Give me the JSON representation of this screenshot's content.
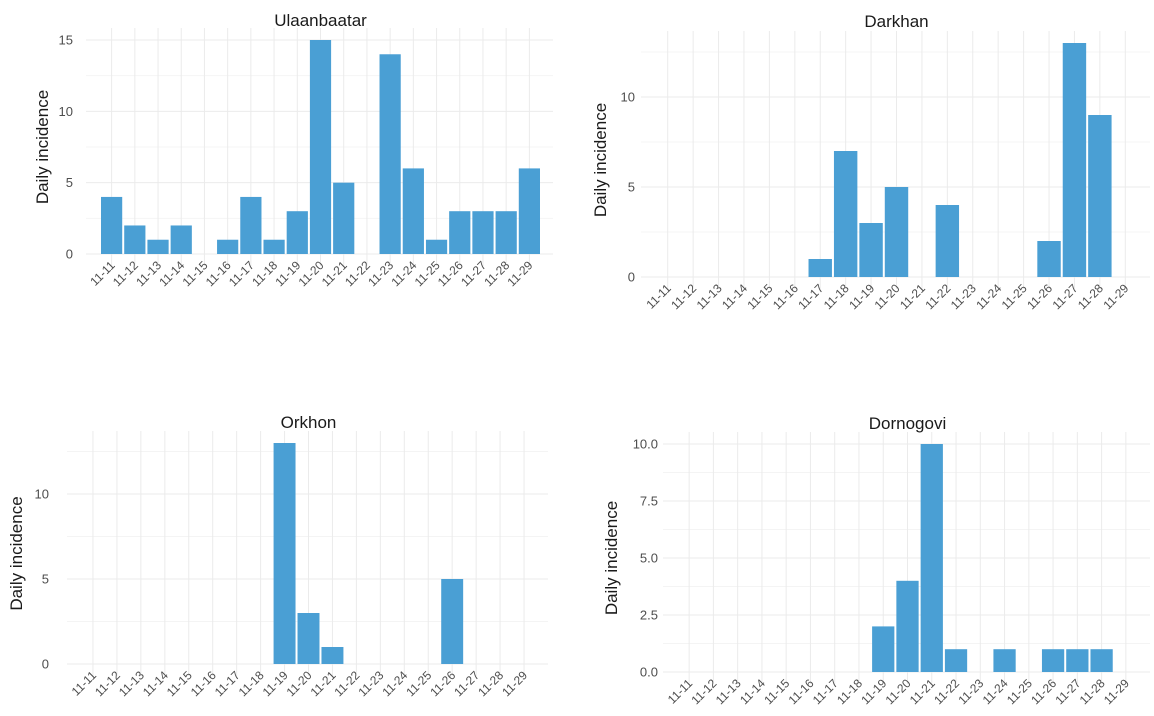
{
  "chart_data": [
    {
      "type": "bar",
      "title": "Ulaanbaatar",
      "ylabel": "Daily incidence",
      "categories": [
        "11-11",
        "11-12",
        "11-13",
        "11-14",
        "11-15",
        "11-16",
        "11-17",
        "11-18",
        "11-19",
        "11-20",
        "11-21",
        "11-22",
        "11-23",
        "11-24",
        "11-25",
        "11-26",
        "11-27",
        "11-28",
        "11-29"
      ],
      "values": [
        4,
        2,
        1,
        2,
        0,
        1,
        4,
        1,
        3,
        15,
        5,
        0,
        14,
        6,
        1,
        3,
        3,
        3,
        6
      ],
      "yticks": [
        0,
        5,
        10,
        15
      ],
      "ytick_labels": [
        "0",
        "5",
        "10",
        "15"
      ],
      "ylim": [
        0,
        15
      ],
      "bar_color": "#4a9fd4",
      "grid": true
    },
    {
      "type": "bar",
      "title": "Darkhan",
      "ylabel": "Daily incidence",
      "categories": [
        "11-11",
        "11-12",
        "11-13",
        "11-14",
        "11-15",
        "11-16",
        "11-17",
        "11-18",
        "11-19",
        "11-20",
        "11-21",
        "11-22",
        "11-23",
        "11-24",
        "11-25",
        "11-26",
        "11-27",
        "11-28",
        "11-29"
      ],
      "values": [
        0,
        0,
        0,
        0,
        0,
        0,
        1,
        7,
        3,
        5,
        0,
        4,
        0,
        0,
        0,
        2,
        13,
        9,
        0
      ],
      "yticks": [
        0,
        5,
        10
      ],
      "ytick_labels": [
        "0",
        "5",
        "10"
      ],
      "ylim": [
        0,
        13
      ],
      "bar_color": "#4a9fd4",
      "grid": true
    },
    {
      "type": "bar",
      "title": "Orkhon",
      "ylabel": "Daily incidence",
      "categories": [
        "11-11",
        "11-12",
        "11-13",
        "11-14",
        "11-15",
        "11-16",
        "11-17",
        "11-18",
        "11-19",
        "11-20",
        "11-21",
        "11-22",
        "11-23",
        "11-24",
        "11-25",
        "11-26",
        "11-27",
        "11-28",
        "11-29"
      ],
      "values": [
        0,
        0,
        0,
        0,
        0,
        0,
        0,
        0,
        13,
        3,
        1,
        0,
        0,
        0,
        0,
        5,
        0,
        0,
        0
      ],
      "yticks": [
        0,
        5,
        10
      ],
      "ytick_labels": [
        "0",
        "5",
        "10"
      ],
      "ylim": [
        0,
        13
      ],
      "bar_color": "#4a9fd4",
      "grid": true
    },
    {
      "type": "bar",
      "title": "Dornogovi",
      "ylabel": "Daily incidence",
      "categories": [
        "11-11",
        "11-12",
        "11-13",
        "11-14",
        "11-15",
        "11-16",
        "11-17",
        "11-18",
        "11-19",
        "11-20",
        "11-21",
        "11-22",
        "11-23",
        "11-24",
        "11-25",
        "11-26",
        "11-27",
        "11-28",
        "11-29"
      ],
      "values": [
        0,
        0,
        0,
        0,
        0,
        0,
        0,
        0,
        2,
        4,
        10,
        1,
        0,
        1,
        0,
        1,
        1,
        1,
        0
      ],
      "yticks": [
        0,
        2.5,
        5,
        7.5,
        10
      ],
      "ytick_labels": [
        "0.0",
        "2.5",
        "5.0",
        "7.5",
        "10.0"
      ],
      "ylim": [
        0,
        10
      ],
      "bar_color": "#4a9fd4",
      "grid": true
    }
  ]
}
